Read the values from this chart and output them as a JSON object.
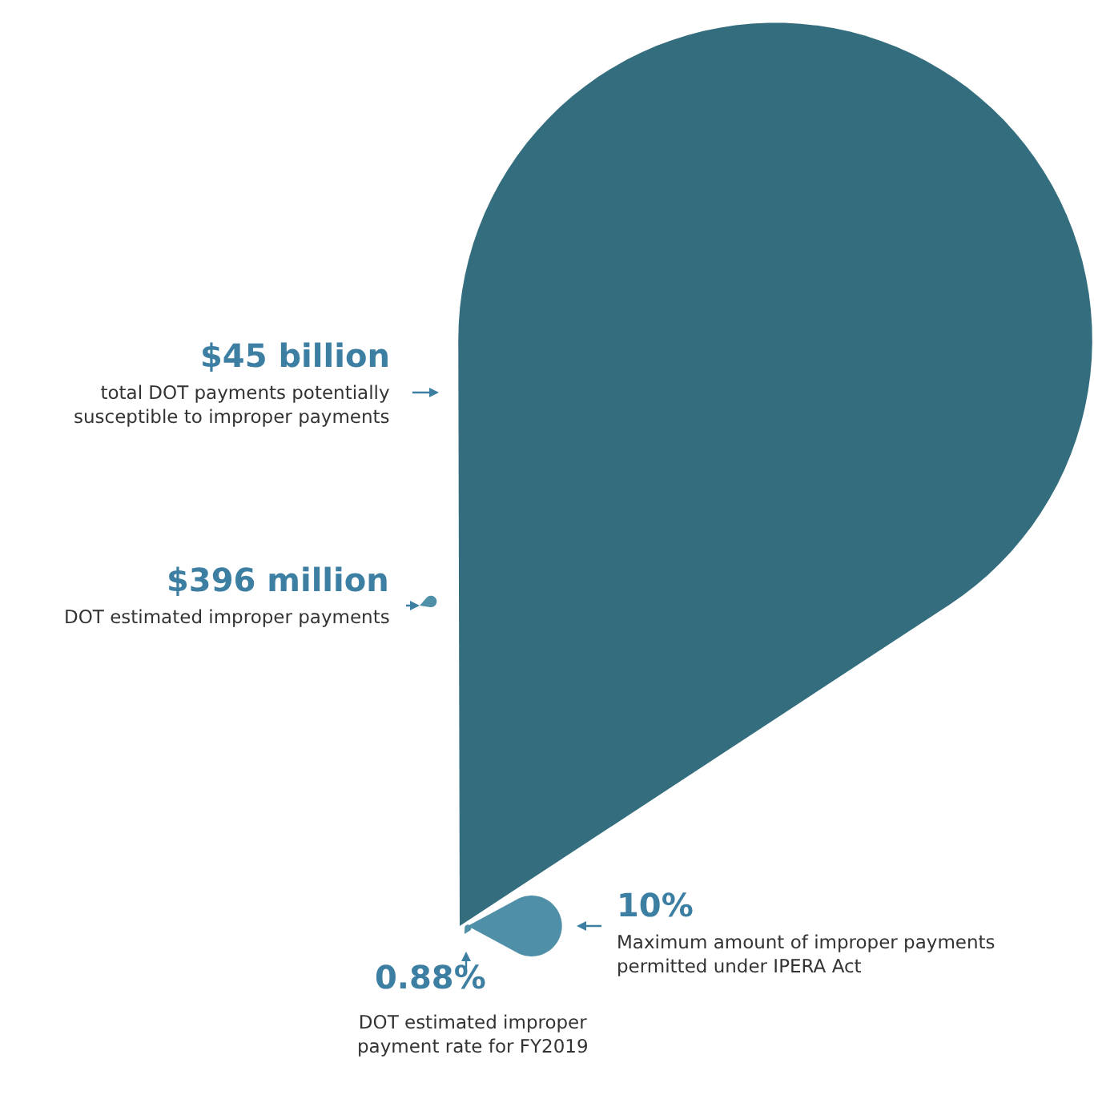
{
  "chart_data": {
    "type": "other",
    "categories": [
      "total DOT payments potentially\nsusceptible to improper payments",
      "DOT estimated improper payments",
      "Maximum amount of improper payments\npermitted under IPERA Act",
      "DOT estimated improper\npayment rate for FY2019"
    ],
    "values": [
      45,
      396,
      10,
      0.88
    ],
    "value_labels": [
      "$45 billion",
      "$396 million",
      "10%",
      "0.88%"
    ],
    "colors": [
      "#336d7e",
      "#4f8fa8",
      "#4f8fa8",
      "#4f8fa8"
    ]
  }
}
